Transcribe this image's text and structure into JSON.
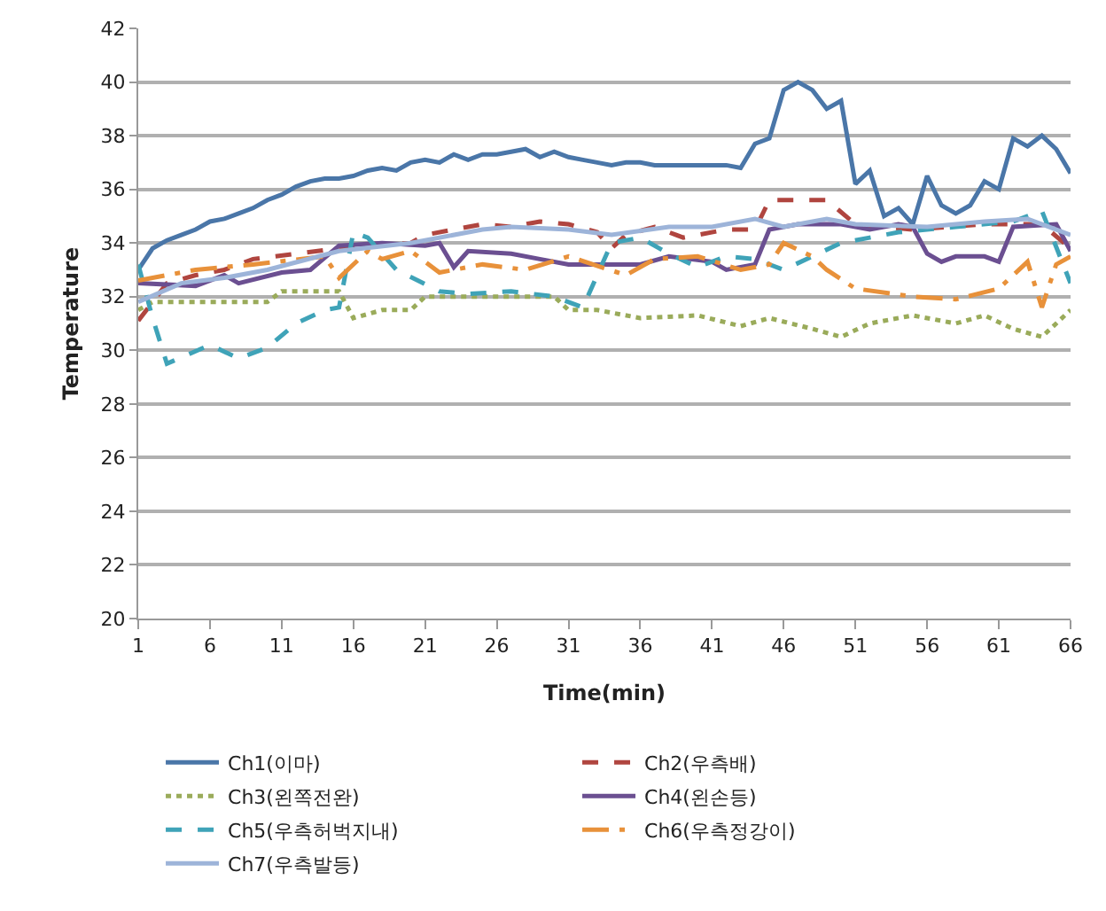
{
  "chart_data": {
    "type": "line",
    "xlabel": "Time(min)",
    "ylabel": "Temperature",
    "xlim": [
      1,
      66
    ],
    "xticks": [
      1,
      6,
      11,
      16,
      21,
      26,
      31,
      36,
      41,
      46,
      51,
      56,
      61,
      66
    ],
    "ylim": [
      20,
      42
    ],
    "yticks": [
      20,
      22,
      24,
      26,
      28,
      30,
      32,
      34,
      36,
      38,
      40,
      42
    ],
    "grid": "y",
    "legend": "bottom",
    "marker": "none",
    "series": [
      {
        "name": "Ch1(이마)",
        "color": "#4a76a8",
        "line_style": "solid",
        "x": [
          1,
          2,
          3,
          4,
          5,
          6,
          7,
          8,
          9,
          10,
          11,
          12,
          13,
          14,
          15,
          16,
          17,
          18,
          19,
          20,
          21,
          22,
          23,
          24,
          25,
          26,
          27,
          28,
          29,
          30,
          31,
          32,
          33,
          34,
          35,
          36,
          37,
          38,
          39,
          40,
          41,
          42,
          43,
          44,
          45,
          46,
          47,
          48,
          49,
          50,
          51,
          52,
          53,
          54,
          55,
          56,
          57,
          58,
          59,
          60,
          61,
          62,
          63,
          64,
          65,
          66
        ],
        "values": [
          33.0,
          33.8,
          34.1,
          34.3,
          34.5,
          34.8,
          34.9,
          35.1,
          35.3,
          35.6,
          35.8,
          36.1,
          36.3,
          36.4,
          36.4,
          36.5,
          36.7,
          36.8,
          36.7,
          37.0,
          37.1,
          37.0,
          37.3,
          37.1,
          37.3,
          37.3,
          37.4,
          37.5,
          37.2,
          37.4,
          37.2,
          37.1,
          37.0,
          36.9,
          37.0,
          37.0,
          36.9,
          36.9,
          36.9,
          36.9,
          36.9,
          36.9,
          36.8,
          37.7,
          37.9,
          39.7,
          40.0,
          39.7,
          39.0,
          39.3,
          36.2,
          36.7,
          35.0,
          35.3,
          34.7,
          36.5,
          35.4,
          35.1,
          35.4,
          36.3,
          36.0,
          37.9,
          37.6,
          38.0,
          37.5,
          36.6
        ]
      },
      {
        "name": "Ch2(우측배)",
        "color": "#b0453f",
        "line_style": "dashed",
        "x": [
          1,
          3,
          5,
          7,
          9,
          12,
          15,
          17,
          20,
          21,
          23,
          25,
          27,
          29,
          31,
          33,
          34,
          35,
          37,
          39,
          42,
          44,
          45,
          49,
          51,
          55,
          60,
          64,
          66
        ],
        "values": [
          31.1,
          32.5,
          32.8,
          33.0,
          33.4,
          33.6,
          33.8,
          33.9,
          34.0,
          34.3,
          34.5,
          34.7,
          34.6,
          34.8,
          34.7,
          34.4,
          33.8,
          34.3,
          34.6,
          34.2,
          34.5,
          34.5,
          35.6,
          35.6,
          34.7,
          34.5,
          34.7,
          34.7,
          33.8
        ]
      },
      {
        "name": "Ch3(왼쪽전완)",
        "color": "#9aab5a",
        "line_style": "dotted",
        "x": [
          1,
          2,
          10,
          11,
          15,
          16,
          18,
          20,
          21,
          30,
          31,
          33,
          36,
          40,
          43,
          45,
          48,
          50,
          52,
          55,
          58,
          60,
          62,
          64,
          66
        ],
        "values": [
          31.5,
          31.8,
          31.8,
          32.2,
          32.2,
          31.2,
          31.5,
          31.5,
          32.0,
          32.0,
          31.5,
          31.5,
          31.2,
          31.3,
          30.9,
          31.2,
          30.8,
          30.5,
          31.0,
          31.3,
          31.0,
          31.3,
          30.8,
          30.5,
          31.5
        ]
      },
      {
        "name": "Ch4(왼손등)",
        "color": "#6b4f91",
        "line_style": "solid",
        "x": [
          1,
          5,
          7,
          8,
          11,
          13,
          15,
          18,
          21,
          22,
          23,
          24,
          27,
          29,
          31,
          36,
          38,
          41,
          42,
          44,
          45,
          47,
          50,
          52,
          54,
          55,
          56,
          57,
          58,
          60,
          61,
          62,
          65,
          66
        ],
        "values": [
          32.5,
          32.4,
          32.8,
          32.5,
          32.9,
          33.0,
          33.9,
          34.0,
          33.9,
          34.0,
          33.1,
          33.7,
          33.6,
          33.4,
          33.2,
          33.2,
          33.5,
          33.3,
          33.0,
          33.2,
          34.5,
          34.7,
          34.7,
          34.5,
          34.7,
          34.6,
          33.6,
          33.3,
          33.5,
          33.5,
          33.3,
          34.6,
          34.7,
          33.7
        ]
      },
      {
        "name": "Ch5(우측허벅지내)",
        "color": "#3fa3b8",
        "line_style": "dashed",
        "x": [
          1,
          2,
          3,
          6,
          8,
          10,
          12,
          14,
          15,
          16,
          17,
          19,
          22,
          24,
          27,
          30,
          32,
          33,
          34,
          36,
          38,
          40,
          42,
          44,
          46,
          48,
          50,
          52,
          54,
          58,
          62,
          64,
          66
        ],
        "values": [
          33.2,
          31.2,
          29.5,
          30.2,
          29.7,
          30.1,
          31.0,
          31.5,
          31.6,
          34.4,
          34.2,
          33.0,
          32.2,
          32.1,
          32.2,
          32.0,
          31.6,
          32.8,
          34.0,
          34.2,
          33.6,
          33.1,
          33.5,
          33.4,
          33.0,
          33.5,
          34.0,
          34.2,
          34.4,
          34.6,
          34.8,
          35.2,
          32.5
        ]
      },
      {
        "name": "Ch6(우측정강이)",
        "color": "#e8913a",
        "line_style": "dashdot",
        "x": [
          1,
          5,
          9,
          14,
          15,
          17,
          18,
          20,
          22,
          25,
          28,
          31,
          35,
          37,
          40,
          43,
          45,
          46,
          48,
          49,
          51,
          55,
          58,
          61,
          63,
          64,
          65,
          66
        ],
        "values": [
          32.6,
          33.0,
          33.2,
          33.5,
          32.7,
          33.7,
          33.4,
          33.7,
          32.9,
          33.2,
          33.0,
          33.5,
          32.8,
          33.4,
          33.5,
          33.0,
          33.2,
          34.0,
          33.5,
          33.0,
          32.3,
          32.0,
          31.9,
          32.3,
          33.3,
          31.6,
          33.2,
          33.5
        ]
      },
      {
        "name": "Ch7(우측발등)",
        "color": "#9db4d9",
        "line_style": "solid",
        "x": [
          1,
          4,
          7,
          10,
          15,
          20,
          25,
          27,
          31,
          34,
          38,
          41,
          44,
          46,
          49,
          51,
          56,
          60,
          63,
          66
        ],
        "values": [
          31.8,
          32.5,
          32.7,
          33.0,
          33.7,
          34.0,
          34.5,
          34.6,
          34.5,
          34.3,
          34.6,
          34.6,
          34.9,
          34.6,
          34.9,
          34.7,
          34.6,
          34.8,
          34.9,
          34.3
        ]
      }
    ]
  }
}
